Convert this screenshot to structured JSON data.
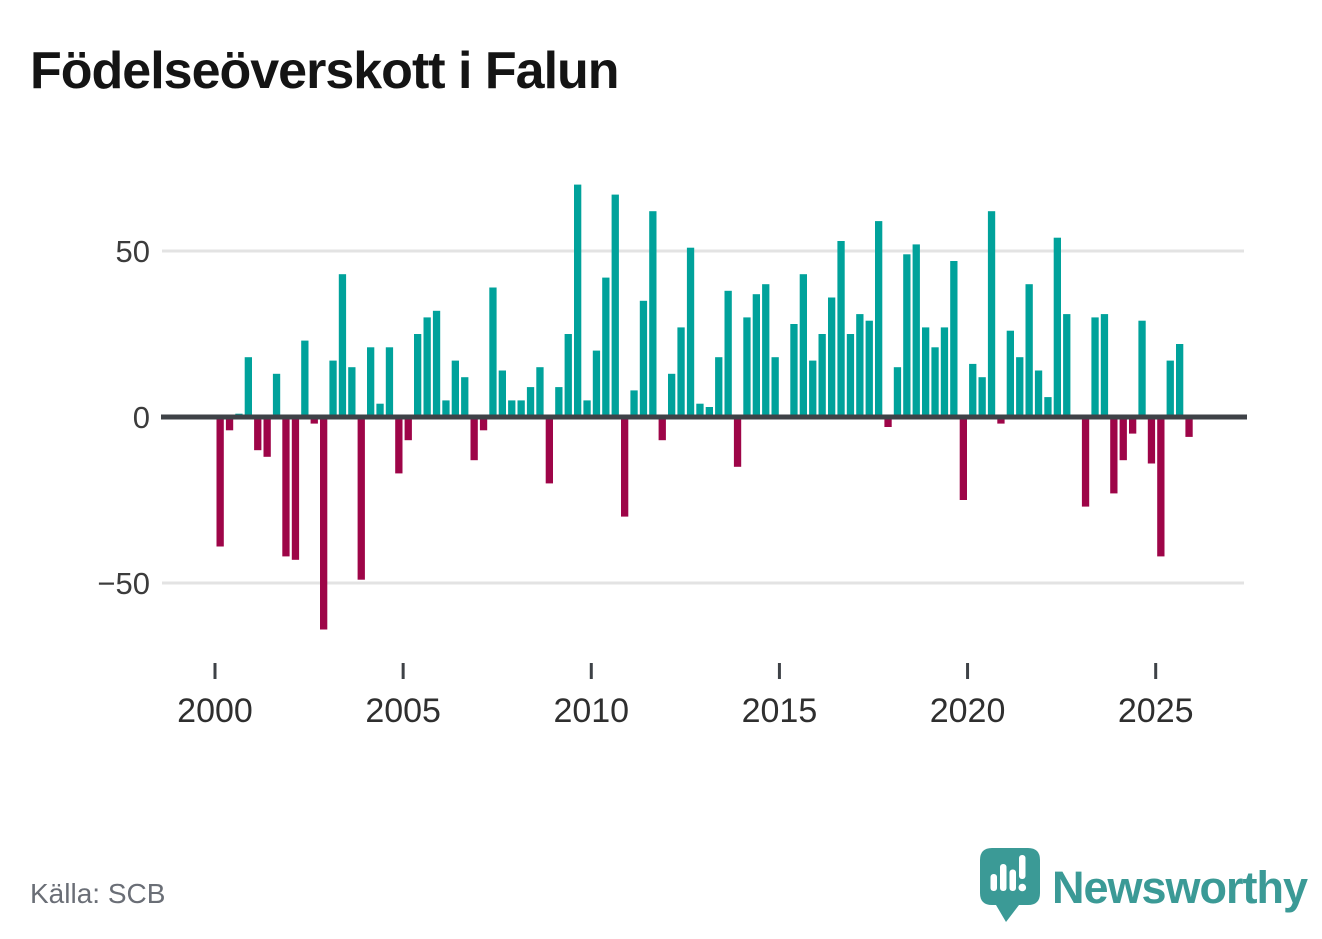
{
  "header": {
    "title": "Födelseöverskott i Falun"
  },
  "footer": {
    "source_label": "Källa: SCB",
    "brand": "Newsworthy",
    "brand_color": "#3b9a96",
    "logo_icon": "speech-bubble-bar-chart-icon"
  },
  "chart_data": {
    "type": "bar",
    "title": "Födelseöverskott i Falun",
    "frequency": "quarterly",
    "start_year": 2000,
    "start_quarter": 1,
    "x_ticks": [
      2000,
      2005,
      2010,
      2015,
      2020,
      2025
    ],
    "y_ticks": [
      {
        "value": 50,
        "label": "50"
      },
      {
        "value": 0,
        "label": "0"
      },
      {
        "value": -50,
        "label": "−50"
      }
    ],
    "ylim": [
      -70,
      75
    ],
    "grid": "horizontal gridlines at +50 and -50 only",
    "legend": "none",
    "positive_color": "#00a29b",
    "negative_color": "#9e0548",
    "axis_line_color": "#3e4247",
    "gridline_color": "#e3e3e3",
    "series": [
      {
        "name": "Födelseöverskott",
        "values": [
          -39,
          -4,
          1,
          18,
          -10,
          -12,
          13,
          -42,
          -43,
          23,
          -2,
          -64,
          17,
          43,
          15,
          -49,
          21,
          4,
          21,
          -17,
          -7,
          25,
          30,
          32,
          5,
          17,
          12,
          -13,
          -4,
          39,
          14,
          5,
          5,
          9,
          15,
          -20,
          9,
          25,
          70,
          5,
          20,
          42,
          67,
          -30,
          8,
          35,
          62,
          -7,
          13,
          27,
          51,
          4,
          3,
          18,
          38,
          -15,
          30,
          37,
          40,
          18,
          0,
          28,
          43,
          17,
          25,
          36,
          53,
          25,
          31,
          29,
          59,
          -3,
          15,
          49,
          52,
          27,
          21,
          27,
          47,
          -25,
          16,
          12,
          62,
          -2,
          26,
          18,
          40,
          14,
          6,
          54,
          31,
          0,
          -27,
          30,
          31,
          -23,
          -13,
          -5,
          29,
          -14,
          -42,
          17,
          22,
          -6
        ]
      }
    ]
  }
}
